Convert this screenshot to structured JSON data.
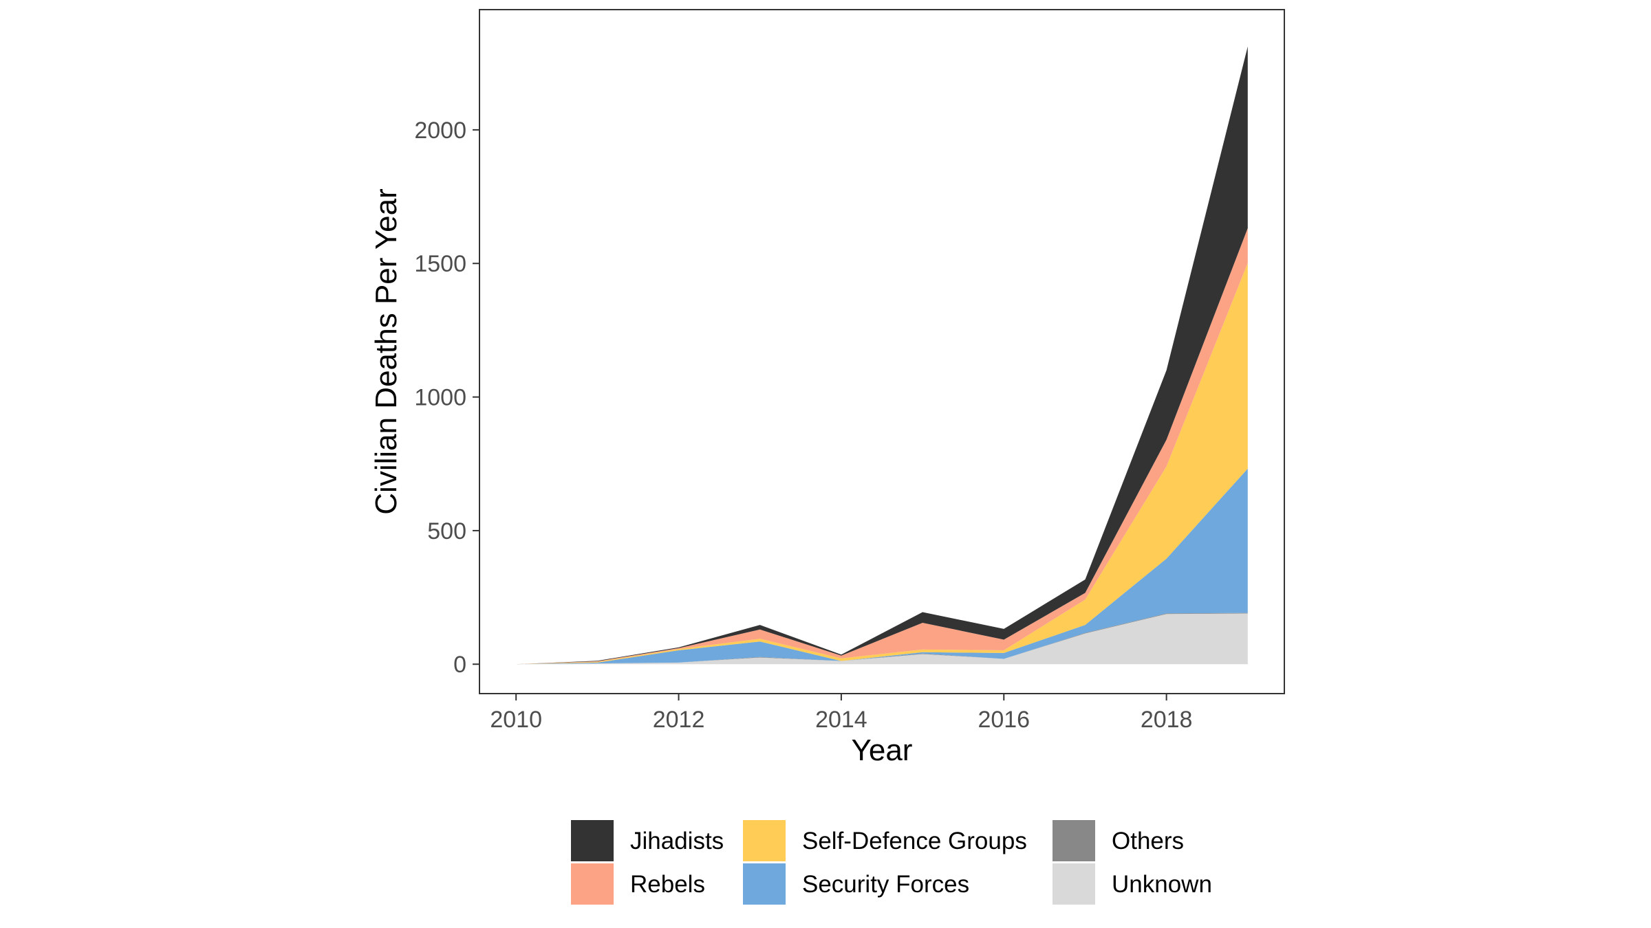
{
  "chart_data": {
    "type": "area",
    "stacked": true,
    "title": "",
    "xlabel": "Year",
    "ylabel": "Civilian Deaths Per Year",
    "x": [
      2010,
      2011,
      2012,
      2013,
      2014,
      2015,
      2016,
      2017,
      2018,
      2019
    ],
    "xlim": [
      2009.55,
      2019.45
    ],
    "ylim": [
      -110,
      2450
    ],
    "xticks": [
      2010,
      2012,
      2014,
      2016,
      2018
    ],
    "yticks": [
      0,
      500,
      1000,
      1500,
      2000
    ],
    "grid": false,
    "legend_position": "bottom",
    "series": [
      {
        "name": "Unknown",
        "color": "#D9D9D9",
        "values": [
          0,
          3,
          6,
          25,
          12,
          38,
          20,
          115,
          188,
          190
        ]
      },
      {
        "name": "Others",
        "color": "#888888",
        "values": [
          0,
          0,
          0,
          2,
          0,
          2,
          0,
          2,
          2,
          2
        ]
      },
      {
        "name": "Security Forces",
        "color": "#6FA8DC",
        "values": [
          0,
          3,
          46,
          58,
          0,
          5,
          22,
          30,
          205,
          540
        ]
      },
      {
        "name": "Self-Defence Groups",
        "color": "#FFCC55",
        "values": [
          0,
          3,
          5,
          10,
          10,
          10,
          10,
          95,
          345,
          770
        ]
      },
      {
        "name": "Rebels",
        "color": "#FCA386",
        "values": [
          0,
          2,
          3,
          35,
          10,
          100,
          40,
          25,
          100,
          130
        ]
      },
      {
        "name": "Jihadists",
        "color": "#333333",
        "values": [
          0,
          2,
          3,
          17,
          4,
          40,
          40,
          50,
          260,
          680
        ]
      }
    ],
    "legend": {
      "columns": [
        [
          "Jihadists",
          "Rebels"
        ],
        [
          "Self-Defence Groups",
          "Security Forces"
        ],
        [
          "Others",
          "Unknown"
        ]
      ]
    }
  }
}
